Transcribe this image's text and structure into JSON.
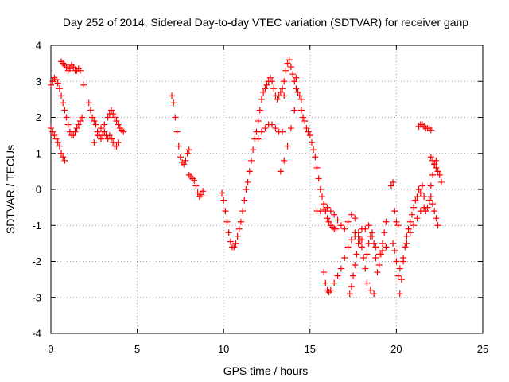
{
  "chart_data": {
    "type": "scatter",
    "title": "Day 252 of 2014, Sidereal Day-to-day VTEC variation (SDTVAR) for receiver ganp",
    "xlabel": "GPS time / hours",
    "ylabel": "SDTVAR / TECUs",
    "xlim": [
      0,
      25
    ],
    "ylim": [
      -4,
      4
    ],
    "xticks": [
      0,
      5,
      10,
      15,
      20,
      25
    ],
    "yticks": [
      -4,
      -3,
      -2,
      -1,
      0,
      1,
      2,
      3,
      4
    ],
    "grid": true,
    "marker": "+",
    "marker_color": "#ff0000",
    "series": [
      {
        "name": "s1",
        "x": [
          0.0,
          0.1,
          0.2,
          0.3,
          0.4,
          0.5,
          0.6,
          0.7,
          0.8
        ],
        "y": [
          1.7,
          1.6,
          1.5,
          1.4,
          1.3,
          1.2,
          1.0,
          0.9,
          0.8
        ]
      },
      {
        "name": "s2",
        "x": [
          0.0,
          0.1,
          0.2,
          0.3,
          0.4,
          0.5,
          0.6,
          0.7,
          0.8,
          0.9,
          1.0,
          1.1,
          1.2,
          1.3,
          1.4,
          1.5,
          1.6,
          1.7,
          1.8
        ],
        "y": [
          2.9,
          3.0,
          3.1,
          3.05,
          2.95,
          2.8,
          2.6,
          2.4,
          2.2,
          2.0,
          1.8,
          1.6,
          1.5,
          1.5,
          1.6,
          1.7,
          1.8,
          1.9,
          2.0
        ]
      },
      {
        "name": "s3",
        "x": [
          0.6,
          0.7,
          0.8,
          0.9,
          1.0,
          1.1,
          1.2,
          1.3,
          1.4,
          1.5,
          1.6,
          1.7
        ],
        "y": [
          3.55,
          3.5,
          3.45,
          3.4,
          3.3,
          3.35,
          3.45,
          3.4,
          3.3,
          3.3,
          3.35,
          3.3
        ]
      },
      {
        "name": "s4",
        "x": [
          1.9
        ],
        "y": [
          2.9
        ]
      },
      {
        "name": "s5",
        "x": [
          2.2,
          2.3,
          2.4,
          2.5,
          2.6,
          2.7,
          2.8,
          2.9,
          3.0,
          3.1,
          3.2,
          3.3
        ],
        "y": [
          2.4,
          2.2,
          2.0,
          1.9,
          1.8,
          1.6,
          1.5,
          1.4,
          1.5,
          1.6,
          1.5,
          1.4
        ]
      },
      {
        "name": "s6",
        "x": [
          2.5,
          2.7,
          2.9,
          3.1,
          3.3,
          3.4,
          3.5,
          3.6,
          3.7,
          3.8,
          3.9,
          4.0,
          4.1,
          4.2
        ],
        "y": [
          1.3,
          1.5,
          1.7,
          1.8,
          2.0,
          2.1,
          2.2,
          2.1,
          2.0,
          1.9,
          1.8,
          1.7,
          1.65,
          1.6
        ]
      },
      {
        "name": "s7",
        "x": [
          3.4,
          3.5,
          3.6,
          3.7,
          3.8,
          3.9
        ],
        "y": [
          1.5,
          1.4,
          1.3,
          1.2,
          1.2,
          1.3
        ]
      },
      {
        "name": "s8",
        "x": [
          7.0,
          7.1,
          7.2,
          7.3,
          7.4,
          7.5,
          7.6,
          7.7,
          7.8,
          7.9,
          8.0
        ],
        "y": [
          2.6,
          2.4,
          2.0,
          1.6,
          1.2,
          0.9,
          0.75,
          0.7,
          0.8,
          1.0,
          1.1
        ]
      },
      {
        "name": "s9",
        "x": [
          8.0,
          8.1,
          8.2,
          8.3,
          8.4,
          8.5,
          8.6,
          8.7,
          8.8
        ],
        "y": [
          0.4,
          0.35,
          0.3,
          0.25,
          0.1,
          -0.1,
          -0.2,
          -0.15,
          -0.05
        ]
      },
      {
        "name": "s10",
        "x": [
          9.9,
          10.0,
          10.1,
          10.2,
          10.3,
          10.4,
          10.5,
          10.6,
          10.7,
          10.8,
          10.9,
          11.0,
          11.1,
          11.2,
          11.3,
          11.4,
          11.5,
          11.6,
          11.7,
          11.8,
          11.9,
          12.0,
          12.1,
          12.2,
          12.3,
          12.4,
          12.5,
          12.6,
          12.7,
          12.8,
          12.9,
          13.0,
          13.1,
          13.2,
          13.3,
          13.4,
          13.5
        ],
        "y": [
          -0.1,
          -0.3,
          -0.6,
          -0.9,
          -1.2,
          -1.45,
          -1.6,
          -1.6,
          -1.5,
          -1.3,
          -1.1,
          -0.9,
          -0.6,
          -0.3,
          0.0,
          0.2,
          0.5,
          0.8,
          1.1,
          1.4,
          1.6,
          1.9,
          2.2,
          2.5,
          2.7,
          2.8,
          2.9,
          3.0,
          3.1,
          3.0,
          2.8,
          2.6,
          2.5,
          2.6,
          2.7,
          2.8,
          2.6
        ]
      },
      {
        "name": "s11",
        "x": [
          12.0,
          12.2,
          12.4,
          12.6,
          12.8,
          13.0,
          13.2,
          13.4
        ],
        "y": [
          1.4,
          1.6,
          1.7,
          1.8,
          1.8,
          1.7,
          1.6,
          1.6
        ]
      },
      {
        "name": "s12",
        "x": [
          13.5,
          13.6,
          13.7,
          13.8,
          13.9,
          14.0,
          14.1,
          14.2,
          14.3,
          14.4,
          14.5
        ],
        "y": [
          3.0,
          3.3,
          3.5,
          3.6,
          3.4,
          3.2,
          3.0,
          2.8,
          2.7,
          2.6,
          2.5
        ]
      },
      {
        "name": "s13",
        "x": [
          13.3,
          13.5,
          13.7,
          13.9,
          14.1
        ],
        "y": [
          0.5,
          0.8,
          1.2,
          1.7,
          2.2
        ]
      },
      {
        "name": "s14",
        "x": [
          14.2
        ],
        "y": [
          3.1
        ]
      },
      {
        "name": "s15",
        "x": [
          14.5,
          14.6,
          14.7,
          14.8,
          14.9,
          15.0,
          15.1,
          15.2,
          15.3,
          15.4,
          15.5,
          15.6,
          15.7,
          15.8,
          15.9,
          16.0,
          16.1,
          16.2,
          16.3,
          16.4,
          16.5
        ],
        "y": [
          2.2,
          2.0,
          1.9,
          1.7,
          1.6,
          1.5,
          1.3,
          1.1,
          0.9,
          0.6,
          0.3,
          0.0,
          -0.2,
          -0.4,
          -0.6,
          -0.8,
          -0.9,
          -1.0,
          -1.05,
          -1.1,
          -1.1
        ]
      },
      {
        "name": "s16",
        "x": [
          15.4,
          15.6,
          15.8,
          16.0,
          16.2,
          16.4,
          16.6,
          16.8,
          17.0,
          17.2,
          17.4,
          17.6
        ],
        "y": [
          -0.6,
          -0.6,
          -0.55,
          -0.5,
          -0.6,
          -0.7,
          -0.85,
          -1.0,
          -1.1,
          -0.9,
          -0.7,
          -0.8
        ]
      },
      {
        "name": "s17",
        "x": [
          15.8,
          15.9,
          16.0,
          16.1,
          16.2,
          16.4,
          16.6,
          16.8,
          17.0,
          17.2,
          17.4,
          17.6,
          17.8,
          18.0
        ],
        "y": [
          -2.3,
          -2.6,
          -2.8,
          -2.85,
          -2.8,
          -2.6,
          -2.4,
          -2.2,
          -1.9,
          -1.6,
          -1.4,
          -1.3,
          -1.2,
          -1.1
        ]
      },
      {
        "name": "s18",
        "x": [
          17.3,
          17.4,
          17.5,
          17.6,
          17.7,
          17.8,
          17.9,
          18.0,
          18.1,
          18.2,
          18.3,
          18.4,
          18.5,
          18.6,
          18.7,
          18.8,
          18.9,
          19.0,
          19.1,
          19.2,
          19.3,
          19.4
        ],
        "y": [
          -2.9,
          -2.7,
          -2.4,
          -2.1,
          -1.8,
          -1.5,
          -1.4,
          -1.6,
          -1.9,
          -2.2,
          -1.8,
          -1.5,
          -1.3,
          -1.2,
          -1.5,
          -1.9,
          -2.3,
          -2.1,
          -1.8,
          -1.5,
          -1.2,
          -0.9
        ]
      },
      {
        "name": "s19",
        "x": [
          17.6,
          17.8,
          18.0,
          18.2,
          18.4,
          18.6,
          18.8,
          19.0,
          19.2,
          19.4
        ],
        "y": [
          -1.2,
          -1.3,
          -1.4,
          -1.1,
          -1.0,
          -1.3,
          -1.6,
          -1.8,
          -1.7,
          -1.6
        ]
      },
      {
        "name": "s20",
        "x": [
          18.3,
          18.5,
          18.7
        ],
        "y": [
          -2.6,
          -2.8,
          -2.9
        ]
      },
      {
        "name": "s21",
        "x": [
          19.8,
          19.9,
          20.0,
          20.1,
          20.2,
          20.3,
          20.4,
          20.5,
          20.6,
          20.7,
          20.8,
          20.9,
          21.0,
          21.1,
          21.2,
          21.3,
          21.4,
          21.5,
          21.6,
          21.7,
          21.8,
          21.9,
          22.0,
          22.1,
          22.2,
          22.3,
          22.4
        ],
        "y": [
          -1.5,
          -1.7,
          -2.0,
          -2.4,
          -2.9,
          -2.5,
          -2.0,
          -1.6,
          -1.3,
          -1.1,
          -0.9,
          -0.7,
          -0.5,
          -0.3,
          -0.2,
          0.0,
          -0.1,
          0.1,
          -0.2,
          -0.6,
          -0.5,
          -0.3,
          -0.2,
          -0.4,
          -0.6,
          -0.8,
          -1.0
        ]
      },
      {
        "name": "s22",
        "x": [
          19.7,
          19.8,
          19.9,
          20.0,
          20.1
        ],
        "y": [
          0.1,
          0.2,
          -0.6,
          -0.9,
          -1.0
        ]
      },
      {
        "name": "s23",
        "x": [
          20.2,
          20.4,
          20.6,
          20.8,
          21.0,
          21.2,
          21.4,
          21.6
        ],
        "y": [
          -2.2,
          -1.9,
          -1.5,
          -1.2,
          -1.0,
          -0.8,
          -0.6,
          -0.5
        ]
      },
      {
        "name": "s24",
        "x": [
          21.3,
          21.4,
          21.5,
          21.6,
          21.7,
          21.8,
          21.9,
          22.0
        ],
        "y": [
          1.75,
          1.8,
          1.8,
          1.75,
          1.7,
          1.7,
          1.7,
          1.65
        ]
      },
      {
        "name": "s25",
        "x": [
          22.0,
          22.1,
          22.2,
          22.3,
          22.4,
          22.5,
          22.6
        ],
        "y": [
          0.9,
          0.8,
          0.7,
          0.6,
          0.5,
          0.4,
          0.2
        ]
      },
      {
        "name": "s26",
        "x": [
          21.9,
          22.0,
          22.1,
          22.2,
          22.3
        ],
        "y": [
          -0.3,
          0.1,
          0.4,
          0.7,
          0.8
        ]
      }
    ]
  }
}
